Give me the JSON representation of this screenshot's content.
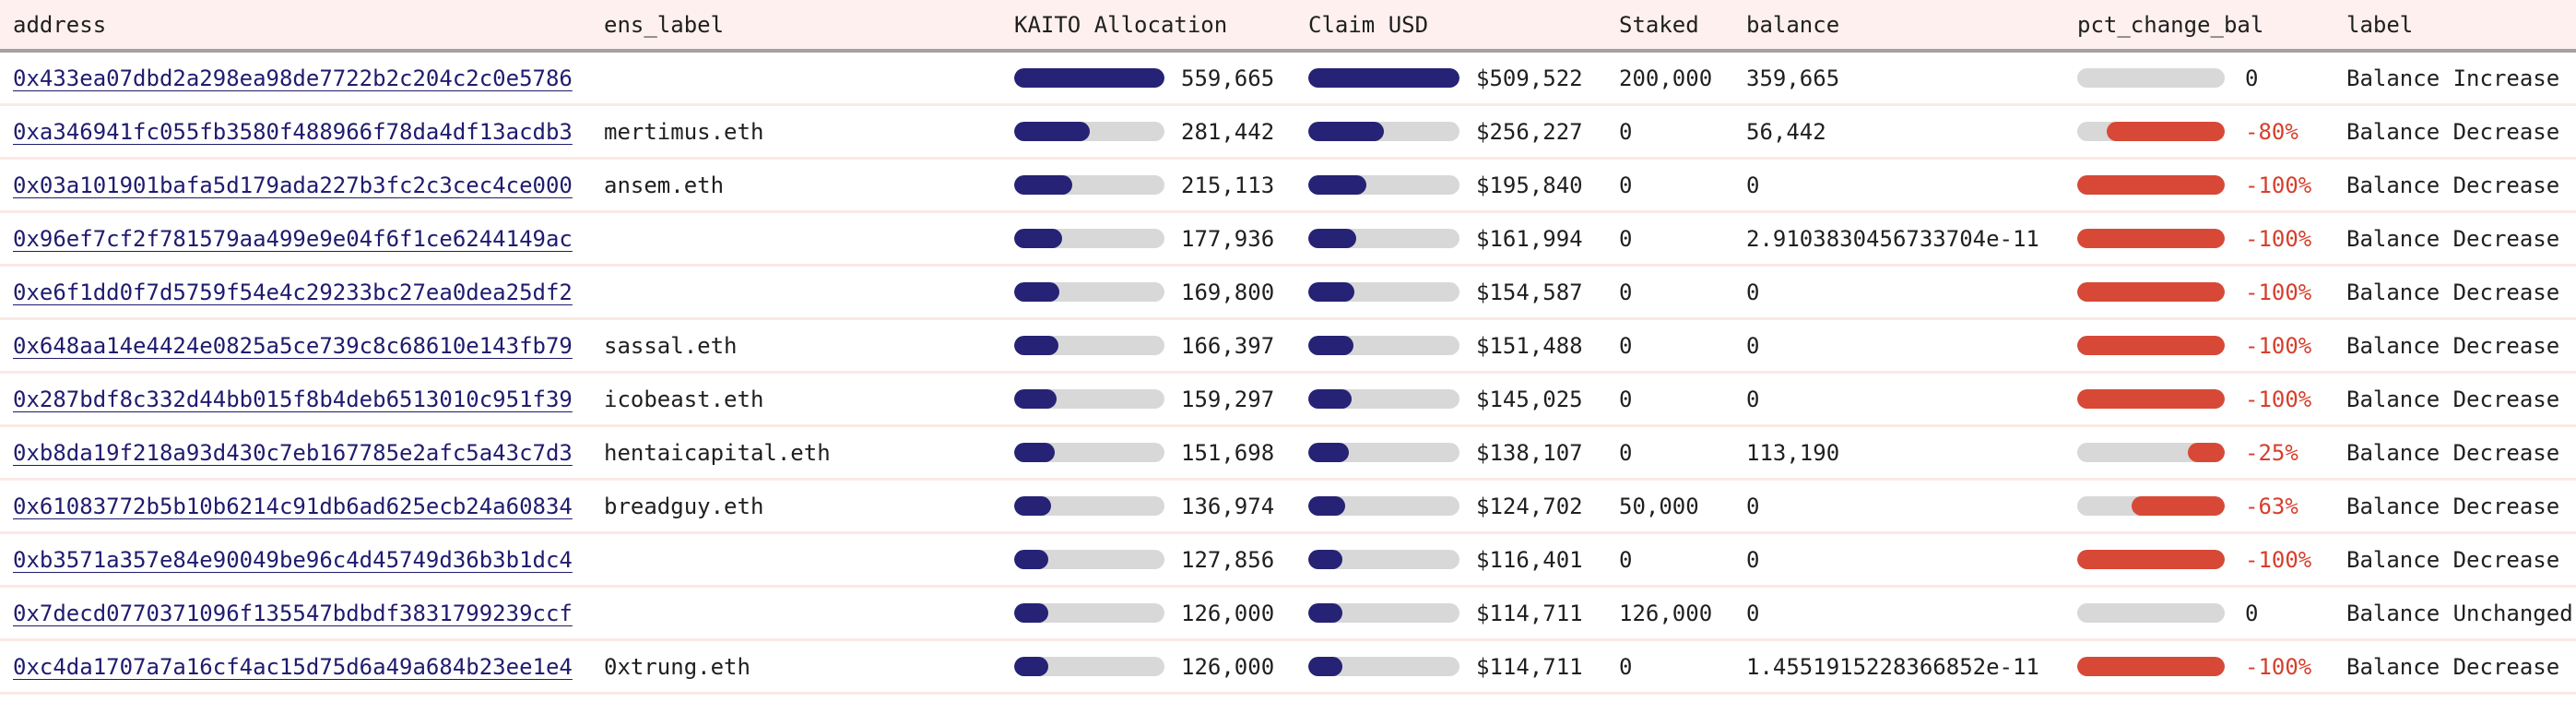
{
  "colors": {
    "header_bg": "#fdf0ee",
    "header_border": "#a2a2a2",
    "row_divider": "#fbe9e5",
    "bar_navy": "#262275",
    "bar_track_gray": "#d8d8d8",
    "bar_red": "#d74936",
    "pct_negative_text": "#d63f2c",
    "address_link": "#1f1b6e",
    "body_text": "#1f1f1f"
  },
  "table": {
    "columns": {
      "address": "address",
      "ens_label": "ens_label",
      "allocation": "KAITO Allocation",
      "claim_usd": "Claim USD",
      "staked": "Staked",
      "balance": "balance",
      "pct_change_bal": "pct_change_bal",
      "label": "label"
    },
    "chart_data": {
      "type": "table",
      "note": "inline data bars: allocation/claim bars navy filled left-aligned as % of column max (559665 / 509522); pct_change bars red filled right-aligned as |pct|%",
      "rows": [
        {
          "address": "0x433ea07dbd2a298ea98de7722b2c204c2c0e5786",
          "ens_label": "",
          "allocation": "559,665",
          "allocation_fill_pct": 100,
          "claim_usd": "$509,522",
          "claim_fill_pct": 100,
          "staked": "200,000",
          "balance": "359,665",
          "pct_change": "0",
          "pct_fill_pct": 0,
          "label": "Balance Increase"
        },
        {
          "address": "0xa346941fc055fb3580f488966f78da4df13acdb3",
          "ens_label": "mertimus.eth",
          "allocation": "281,442",
          "allocation_fill_pct": 50.3,
          "claim_usd": "$256,227",
          "claim_fill_pct": 50.3,
          "staked": "0",
          "balance": "56,442",
          "pct_change": "-80%",
          "pct_fill_pct": 80,
          "label": "Balance Decrease"
        },
        {
          "address": "0x03a101901bafa5d179ada227b3fc2c3cec4ce000",
          "ens_label": "ansem.eth",
          "allocation": "215,113",
          "allocation_fill_pct": 38.4,
          "claim_usd": "$195,840",
          "claim_fill_pct": 38.4,
          "staked": "0",
          "balance": "0",
          "pct_change": "-100%",
          "pct_fill_pct": 100,
          "label": "Balance Decrease"
        },
        {
          "address": "0x96ef7cf2f781579aa499e9e04f6f1ce6244149ac",
          "ens_label": "",
          "allocation": "177,936",
          "allocation_fill_pct": 31.8,
          "claim_usd": "$161,994",
          "claim_fill_pct": 31.8,
          "staked": "0",
          "balance": "2.9103830456733704e-11",
          "pct_change": "-100%",
          "pct_fill_pct": 100,
          "label": "Balance Decrease"
        },
        {
          "address": "0xe6f1dd0f7d5759f54e4c29233bc27ea0dea25df2",
          "ens_label": "",
          "allocation": "169,800",
          "allocation_fill_pct": 30.3,
          "claim_usd": "$154,587",
          "claim_fill_pct": 30.3,
          "staked": "0",
          "balance": "0",
          "pct_change": "-100%",
          "pct_fill_pct": 100,
          "label": "Balance Decrease"
        },
        {
          "address": "0x648aa14e4424e0825a5ce739c8c68610e143fb79",
          "ens_label": "sassal.eth",
          "allocation": "166,397",
          "allocation_fill_pct": 29.7,
          "claim_usd": "$151,488",
          "claim_fill_pct": 29.7,
          "staked": "0",
          "balance": "0",
          "pct_change": "-100%",
          "pct_fill_pct": 100,
          "label": "Balance Decrease"
        },
        {
          "address": "0x287bdf8c332d44bb015f8b4deb6513010c951f39",
          "ens_label": "icobeast.eth",
          "allocation": "159,297",
          "allocation_fill_pct": 28.5,
          "claim_usd": "$145,025",
          "claim_fill_pct": 28.5,
          "staked": "0",
          "balance": "0",
          "pct_change": "-100%",
          "pct_fill_pct": 100,
          "label": "Balance Decrease"
        },
        {
          "address": "0xb8da19f218a93d430c7eb167785e2afc5a43c7d3",
          "ens_label": "hentaicapital.eth",
          "allocation": "151,698",
          "allocation_fill_pct": 27.1,
          "claim_usd": "$138,107",
          "claim_fill_pct": 27.1,
          "staked": "0",
          "balance": "113,190",
          "pct_change": "-25%",
          "pct_fill_pct": 25,
          "label": "Balance Decrease"
        },
        {
          "address": "0x61083772b5b10b6214c91db6ad625ecb24a60834",
          "ens_label": "breadguy.eth",
          "allocation": "136,974",
          "allocation_fill_pct": 24.5,
          "claim_usd": "$124,702",
          "claim_fill_pct": 24.5,
          "staked": "50,000",
          "balance": "0",
          "pct_change": "-63%",
          "pct_fill_pct": 63,
          "label": "Balance Decrease"
        },
        {
          "address": "0xb3571a357e84e90049be96c4d45749d36b3b1dc4",
          "ens_label": "",
          "allocation": "127,856",
          "allocation_fill_pct": 22.8,
          "claim_usd": "$116,401",
          "claim_fill_pct": 22.8,
          "staked": "0",
          "balance": "0",
          "pct_change": "-100%",
          "pct_fill_pct": 100,
          "label": "Balance Decrease"
        },
        {
          "address": "0x7decd0770371096f135547bdbdf3831799239ccf",
          "ens_label": "",
          "allocation": "126,000",
          "allocation_fill_pct": 22.5,
          "claim_usd": "$114,711",
          "claim_fill_pct": 22.5,
          "staked": "126,000",
          "balance": "0",
          "pct_change": "0",
          "pct_fill_pct": 0,
          "label": "Balance Unchanged"
        },
        {
          "address": "0xc4da1707a7a16cf4ac15d75d6a49a684b23ee1e4",
          "ens_label": "0xtrung.eth",
          "allocation": "126,000",
          "allocation_fill_pct": 22.5,
          "claim_usd": "$114,711",
          "claim_fill_pct": 22.5,
          "staked": "0",
          "balance": "1.4551915228366852e-11",
          "pct_change": "-100%",
          "pct_fill_pct": 100,
          "label": "Balance Decrease"
        }
      ]
    }
  }
}
